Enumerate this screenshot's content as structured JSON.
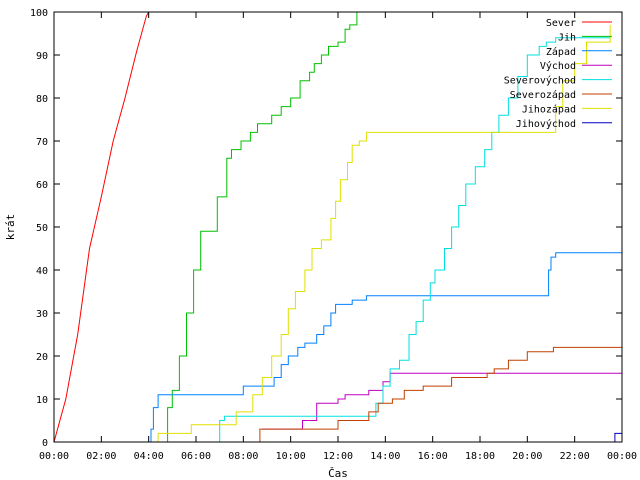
{
  "chart_data": {
    "type": "line",
    "title": "",
    "xlabel": "Čas",
    "ylabel": "krát",
    "xlim": [
      0,
      24
    ],
    "ylim": [
      0,
      100
    ],
    "xticks": [
      "00:00",
      "02:00",
      "04:00",
      "06:00",
      "08:00",
      "10:00",
      "12:00",
      "14:00",
      "16:00",
      "18:00",
      "20:00",
      "22:00",
      "00:00"
    ],
    "yticks": [
      0,
      10,
      20,
      30,
      40,
      50,
      60,
      70,
      80,
      90,
      100
    ],
    "legend_position": "top-right",
    "grid": false,
    "series": [
      {
        "name": "Sever",
        "color": "#ff0000",
        "step": false,
        "points": [
          [
            0.0,
            0
          ],
          [
            0.5,
            10
          ],
          [
            1.0,
            25
          ],
          [
            1.5,
            45
          ],
          [
            2.0,
            57
          ],
          [
            2.5,
            70
          ],
          [
            3.0,
            80
          ],
          [
            3.5,
            91
          ],
          [
            3.9,
            99
          ],
          [
            4.0,
            100
          ]
        ]
      },
      {
        "name": "Jih",
        "color": "#00c000",
        "step": true,
        "points": [
          [
            4.5,
            0
          ],
          [
            4.8,
            8
          ],
          [
            5.0,
            12
          ],
          [
            5.3,
            20
          ],
          [
            5.6,
            30
          ],
          [
            5.9,
            40
          ],
          [
            6.2,
            49
          ],
          [
            6.6,
            49
          ],
          [
            6.9,
            57
          ],
          [
            7.3,
            66
          ],
          [
            7.5,
            68
          ],
          [
            7.9,
            70
          ],
          [
            8.3,
            72
          ],
          [
            8.6,
            74
          ],
          [
            9.2,
            76
          ],
          [
            9.6,
            78
          ],
          [
            10.0,
            80
          ],
          [
            10.4,
            84
          ],
          [
            10.8,
            86
          ],
          [
            11.0,
            88
          ],
          [
            11.3,
            90
          ],
          [
            11.6,
            92
          ],
          [
            12.0,
            93
          ],
          [
            12.3,
            96
          ],
          [
            12.5,
            97
          ],
          [
            12.8,
            100
          ]
        ]
      },
      {
        "name": "Západ",
        "color": "#0080ff",
        "step": true,
        "points": [
          [
            4.0,
            0
          ],
          [
            4.1,
            3
          ],
          [
            4.2,
            8
          ],
          [
            4.4,
            11
          ],
          [
            7.8,
            11
          ],
          [
            8.0,
            13
          ],
          [
            9.3,
            15
          ],
          [
            9.6,
            18
          ],
          [
            9.9,
            20
          ],
          [
            10.3,
            22
          ],
          [
            10.6,
            23
          ],
          [
            11.1,
            25
          ],
          [
            11.4,
            27
          ],
          [
            11.7,
            30
          ],
          [
            11.9,
            32
          ],
          [
            12.3,
            32
          ],
          [
            12.6,
            33
          ],
          [
            13.2,
            34
          ],
          [
            20.6,
            34
          ],
          [
            20.9,
            40
          ],
          [
            21.0,
            43
          ],
          [
            21.2,
            44
          ],
          [
            24.0,
            44
          ]
        ]
      },
      {
        "name": "Východ",
        "color": "#c000c0",
        "step": true,
        "points": [
          [
            8.8,
            3
          ],
          [
            10.5,
            5
          ],
          [
            11.1,
            9
          ],
          [
            12.0,
            10
          ],
          [
            12.3,
            11
          ],
          [
            13.3,
            12
          ],
          [
            13.9,
            14
          ],
          [
            14.2,
            16
          ],
          [
            24.0,
            16
          ]
        ]
      },
      {
        "name": "Severovýchod",
        "color": "#00e0e0",
        "step": true,
        "points": [
          [
            6.9,
            0
          ],
          [
            7.0,
            5
          ],
          [
            7.2,
            6
          ],
          [
            13.3,
            6
          ],
          [
            13.6,
            9
          ],
          [
            13.9,
            13
          ],
          [
            14.2,
            17
          ],
          [
            14.6,
            19
          ],
          [
            15.0,
            25
          ],
          [
            15.3,
            28
          ],
          [
            15.6,
            33
          ],
          [
            15.9,
            37
          ],
          [
            16.1,
            40
          ],
          [
            16.5,
            45
          ],
          [
            16.8,
            50
          ],
          [
            17.1,
            55
          ],
          [
            17.4,
            60
          ],
          [
            17.8,
            64
          ],
          [
            18.2,
            68
          ],
          [
            18.5,
            72
          ],
          [
            18.8,
            76
          ],
          [
            19.2,
            80
          ],
          [
            19.6,
            85
          ],
          [
            20.0,
            90
          ],
          [
            20.5,
            92
          ],
          [
            20.8,
            93
          ],
          [
            21.2,
            94
          ],
          [
            23.5,
            94
          ]
        ]
      },
      {
        "name": "Severozápad",
        "color": "#c04000",
        "step": true,
        "points": [
          [
            8.6,
            0
          ],
          [
            8.7,
            3
          ],
          [
            12.0,
            5
          ],
          [
            13.0,
            5
          ],
          [
            13.3,
            7
          ],
          [
            13.7,
            9
          ],
          [
            14.3,
            10
          ],
          [
            14.8,
            12
          ],
          [
            15.6,
            13
          ],
          [
            16.2,
            13
          ],
          [
            16.8,
            15
          ],
          [
            18.3,
            16
          ],
          [
            18.6,
            17
          ],
          [
            19.2,
            19
          ],
          [
            20.0,
            21
          ],
          [
            20.8,
            21
          ],
          [
            21.1,
            22
          ],
          [
            24.0,
            22
          ]
        ]
      },
      {
        "name": "Jihozápad",
        "color": "#e0e000",
        "step": true,
        "points": [
          [
            4.3,
            0
          ],
          [
            4.4,
            2
          ],
          [
            5.6,
            2
          ],
          [
            5.8,
            4
          ],
          [
            7.5,
            4
          ],
          [
            7.7,
            7
          ],
          [
            8.4,
            11
          ],
          [
            8.8,
            15
          ],
          [
            9.2,
            20
          ],
          [
            9.6,
            25
          ],
          [
            9.9,
            31
          ],
          [
            10.2,
            35
          ],
          [
            10.6,
            40
          ],
          [
            10.9,
            45
          ],
          [
            11.3,
            47
          ],
          [
            11.7,
            52
          ],
          [
            11.9,
            56
          ],
          [
            12.1,
            61
          ],
          [
            12.4,
            65
          ],
          [
            12.6,
            69
          ],
          [
            12.9,
            70
          ],
          [
            13.2,
            72
          ],
          [
            20.9,
            72
          ],
          [
            21.2,
            78
          ],
          [
            21.5,
            84
          ],
          [
            22.0,
            88
          ],
          [
            22.5,
            93
          ],
          [
            23.5,
            97
          ]
        ]
      },
      {
        "name": "Jihovýchod",
        "color": "#0000c0",
        "step": true,
        "points": [
          [
            23.5,
            0
          ],
          [
            23.7,
            2
          ],
          [
            24.0,
            2
          ]
        ]
      }
    ]
  }
}
